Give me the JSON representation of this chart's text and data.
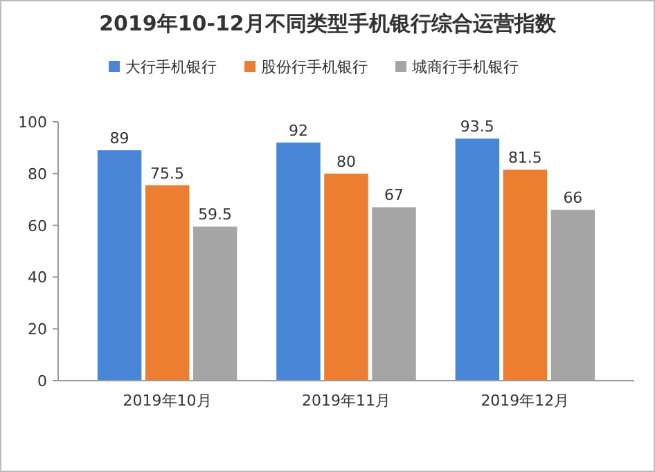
{
  "chart_data": {
    "type": "bar",
    "title": "2019年10-12月不同类型手机银行综合运营指数",
    "categories": [
      "2019年10月",
      "2019年11月",
      "2019年12月"
    ],
    "series": [
      {
        "name": "大行手机银行",
        "color": "#4a86d8",
        "values": [
          89,
          92,
          93.5
        ]
      },
      {
        "name": "股份行手机银行",
        "color": "#ed7d31",
        "values": [
          75.5,
          80,
          81.5
        ]
      },
      {
        "name": "城商行手机银行",
        "color": "#a5a5a5",
        "values": [
          59.5,
          67,
          66
        ]
      }
    ],
    "ylim": [
      0,
      100
    ],
    "yticks": [
      0,
      20,
      40,
      60,
      80,
      100
    ],
    "grid": false,
    "legend": "top",
    "data_labels": true
  }
}
